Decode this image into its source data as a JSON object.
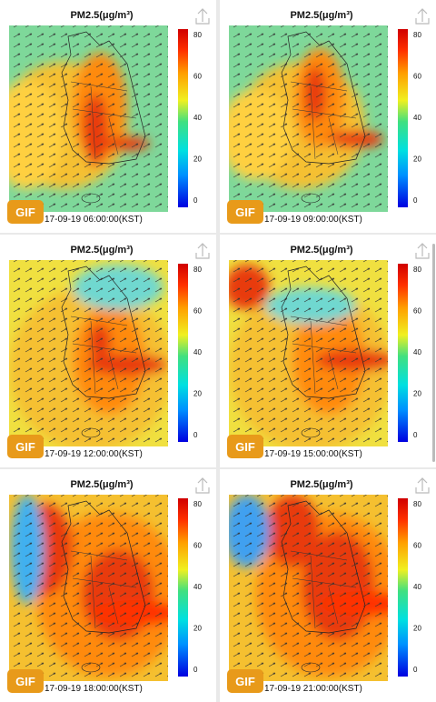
{
  "panels": [
    {
      "title": "PM2.5(μg/m³)",
      "timestamp": "17-09-19 06:00:00(KST)",
      "gif": "GIF",
      "colorbar_ticks": [
        80,
        60,
        40,
        20,
        0
      ]
    },
    {
      "title": "PM2.5(μg/m³)",
      "timestamp": "17-09-19 09:00:00(KST)",
      "gif": "GIF",
      "colorbar_ticks": [
        80,
        60,
        40,
        20,
        0
      ]
    },
    {
      "title": "PM2.5(μg/m³)",
      "timestamp": "17-09-19 12:00:00(KST)",
      "gif": "GIF",
      "colorbar_ticks": [
        80,
        60,
        40,
        20,
        0
      ]
    },
    {
      "title": "PM2.5(μg/m³)",
      "timestamp": "17-09-19 15:00:00(KST)",
      "gif": "GIF",
      "colorbar_ticks": [
        80,
        60,
        40,
        20,
        0
      ]
    },
    {
      "title": "PM2.5(μg/m³)",
      "timestamp": "17-09-19 18:00:00(KST)",
      "gif": "GIF",
      "colorbar_ticks": [
        80,
        60,
        40,
        20,
        0
      ]
    },
    {
      "title": "PM2.5(μg/m³)",
      "timestamp": "17-09-19 21:00:00(KST)",
      "gif": "GIF",
      "colorbar_ticks": [
        80,
        60,
        40,
        20,
        0
      ]
    }
  ]
}
